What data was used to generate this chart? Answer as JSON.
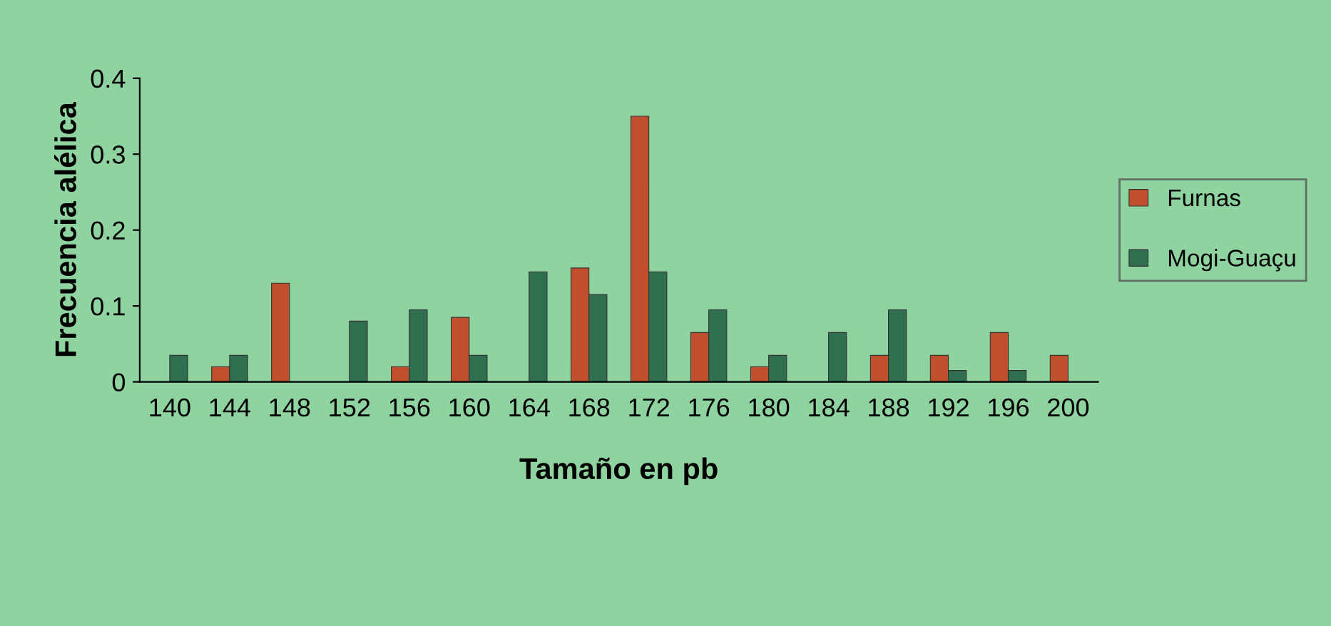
{
  "chart_data": {
    "type": "bar",
    "xlabel": "Tamaño en pb",
    "ylabel": "Frecuencia alélica",
    "categories": [
      "140",
      "144",
      "148",
      "152",
      "156",
      "160",
      "164",
      "168",
      "172",
      "176",
      "180",
      "184",
      "188",
      "192",
      "196",
      "200"
    ],
    "series": [
      {
        "name": "Furnas",
        "color": "#c0502d",
        "values": [
          null,
          0.02,
          0.13,
          null,
          0.02,
          0.085,
          null,
          0.15,
          0.35,
          0.065,
          0.02,
          null,
          0.035,
          0.035,
          0.065,
          0.035
        ]
      },
      {
        "name": "Mogi-Guaçu",
        "color": "#2f6e4f",
        "values": [
          0.035,
          0.035,
          null,
          0.08,
          0.095,
          0.035,
          0.145,
          0.115,
          0.145,
          0.095,
          0.035,
          0.065,
          0.095,
          0.015,
          0.015,
          null
        ]
      }
    ],
    "ylim": [
      0,
      0.4
    ],
    "yticks": [
      {
        "value": 0,
        "label": "0"
      },
      0.1,
      0.2,
      0.3,
      0.4
    ],
    "grid": false,
    "legend": "right"
  }
}
